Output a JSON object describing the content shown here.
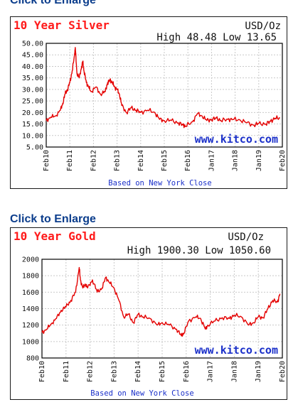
{
  "enlarge_top": "Click to Enlarge",
  "enlarge_bottom": "Click to Enlarge",
  "chart_data": [
    {
      "type": "line",
      "title": "10 Year Silver",
      "unit": "USD/Oz",
      "high_low": "High 48.48 Low 13.65",
      "watermark": "www.kitco.com",
      "note": "Based on New York Close",
      "ylim": [
        5,
        50
      ],
      "yticks": [
        "5.00",
        "10.00",
        "15.00",
        "20.00",
        "25.00",
        "30.00",
        "35.00",
        "40.00",
        "45.00",
        "50.00"
      ],
      "xticks": [
        "Feb10",
        "Feb11",
        "Feb12",
        "Feb13",
        "Feb14",
        "Feb15",
        "Feb16",
        "Jan17",
        "Jan18",
        "Jan19",
        "Feb20"
      ],
      "grid": true,
      "color": "#e40000",
      "series": [
        {
          "x": [
            2010.1,
            2010.3,
            2010.5,
            2010.7,
            2010.8,
            2010.9,
            2011.0,
            2011.1,
            2011.2,
            2011.3,
            2011.33,
            2011.4,
            2011.5,
            2011.6,
            2011.65,
            2011.7,
            2011.8,
            2011.9,
            2012.0,
            2012.2,
            2012.4,
            2012.6,
            2012.7,
            2012.8,
            2012.9,
            2013.0,
            2013.1,
            2013.2,
            2013.3,
            2013.5,
            2013.7,
            2013.9,
            2014.1,
            2014.4,
            2014.7,
            2014.9,
            2015.1,
            2015.4,
            2015.7,
            2015.9,
            2016.0,
            2016.3,
            2016.5,
            2016.7,
            2016.9,
            2017.1,
            2017.3,
            2017.5,
            2017.8,
            2018.0,
            2018.3,
            2018.6,
            2018.9,
            2019.1,
            2019.4,
            2019.6,
            2019.8,
            2020.0
          ],
          "y": [
            16.5,
            18,
            18.5,
            21,
            24,
            28,
            30,
            33,
            38,
            45,
            48.2,
            37,
            35,
            40,
            42,
            38,
            33,
            31,
            29,
            31,
            28,
            29,
            33,
            34,
            33,
            31,
            30,
            28,
            23,
            20,
            22,
            21,
            20,
            21,
            20,
            17,
            16.5,
            16.5,
            15.5,
            14.5,
            14,
            16,
            19.5,
            18.5,
            16.5,
            17,
            17.5,
            16.5,
            17,
            17,
            16.8,
            15.5,
            14.5,
            15.2,
            15,
            16.2,
            17.5,
            17.5
          ]
        }
      ]
    },
    {
      "type": "line",
      "title": "10 Year Gold",
      "unit": "USD/Oz",
      "high_low": "High 1900.30 Low 1050.60",
      "watermark": "www.kitco.com",
      "note": "Based on New York Close",
      "ylim": [
        800,
        2000
      ],
      "yticks": [
        "800",
        "1000",
        "1200",
        "1400",
        "1600",
        "1800",
        "2000"
      ],
      "xticks": [
        "Feb10",
        "Feb11",
        "Feb12",
        "Feb13",
        "Feb14",
        "Feb15",
        "Feb16",
        "Jan17",
        "Jan18",
        "Jan19",
        "Feb20"
      ],
      "grid": true,
      "color": "#e40000",
      "series": [
        {
          "x": [
            2010.1,
            2010.3,
            2010.5,
            2010.7,
            2010.9,
            2011.1,
            2011.3,
            2011.5,
            2011.65,
            2011.7,
            2011.8,
            2011.9,
            2012.0,
            2012.2,
            2012.4,
            2012.6,
            2012.75,
            2012.9,
            2013.1,
            2013.3,
            2013.5,
            2013.7,
            2013.9,
            2014.1,
            2014.3,
            2014.6,
            2014.9,
            2015.1,
            2015.4,
            2015.7,
            2015.9,
            2016.0,
            2016.2,
            2016.5,
            2016.7,
            2016.9,
            2017.0,
            2017.3,
            2017.6,
            2017.9,
            2018.1,
            2018.4,
            2018.7,
            2018.9,
            2019.1,
            2019.3,
            2019.5,
            2019.7,
            2019.9,
            2020.0
          ],
          "y": [
            1110,
            1150,
            1220,
            1280,
            1380,
            1420,
            1500,
            1600,
            1900,
            1750,
            1650,
            1700,
            1650,
            1750,
            1600,
            1650,
            1780,
            1720,
            1650,
            1500,
            1300,
            1330,
            1230,
            1330,
            1300,
            1280,
            1200,
            1230,
            1200,
            1150,
            1070,
            1100,
            1250,
            1300,
            1280,
            1150,
            1200,
            1250,
            1290,
            1280,
            1320,
            1300,
            1200,
            1230,
            1300,
            1290,
            1400,
            1500,
            1480,
            1580
          ]
        }
      ]
    }
  ]
}
